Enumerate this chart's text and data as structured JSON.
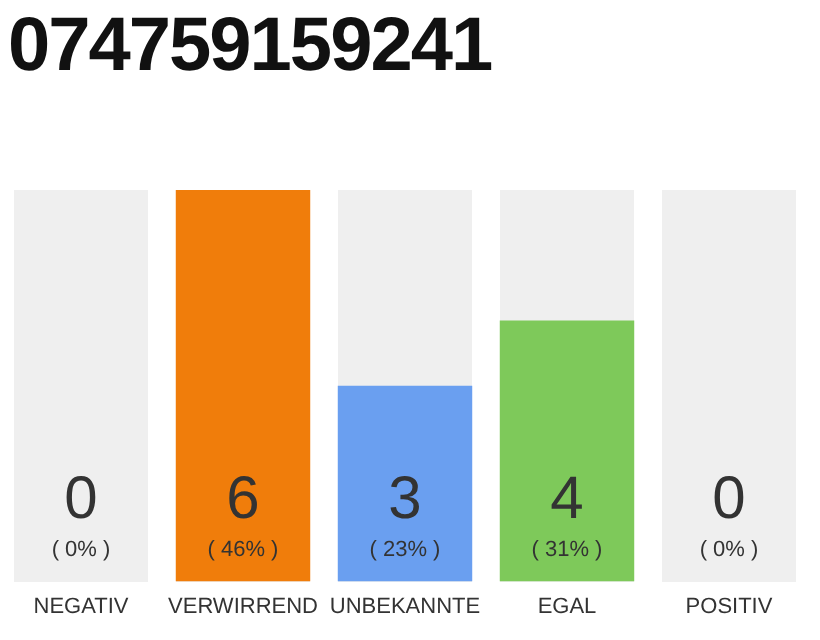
{
  "chart_data": {
    "type": "bar",
    "title": "074759159241",
    "categories": [
      "NEGATIV",
      "VERWIRREND",
      "UNBEKANNTE",
      "EGAL",
      "POSITIV"
    ],
    "values": [
      0,
      6,
      3,
      4,
      0
    ],
    "colors": [
      "#cccccc",
      "#f07d0b",
      "#6a9ff0",
      "#7ec95a",
      "#cccccc"
    ],
    "value_labels": [
      "0\n( 0% )",
      "6\n( 46% )",
      "3\n( 23% )",
      "4\n( 31% )",
      "0\n( 0% )"
    ],
    "grid": false,
    "legend": false,
    "tick_labels": "x"
  }
}
